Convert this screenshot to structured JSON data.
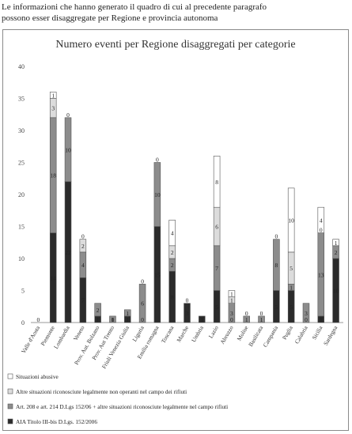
{
  "caption": {
    "line1": "Le informazioni che hanno generato il quadro di cui al precedente paragrafo",
    "line2": "possono esser disaggregate per Regione e provincia autonoma"
  },
  "chart_data": {
    "type": "bar",
    "stacked": true,
    "title": "Numero eventi per Regione disaggregati per categorie",
    "xlabel": "",
    "ylabel": "",
    "ylim": [
      0,
      40
    ],
    "yticks": [
      0,
      5,
      10,
      15,
      20,
      25,
      30,
      35,
      40
    ],
    "grid": false,
    "legend_position": "bottom",
    "categories": [
      "Valle d'Aosta",
      "Piemonte",
      "Lombardia",
      "Veneto",
      "Prov. Aut. Bolzano",
      "Prov. Aut Trento",
      "Friuli Venezia Giulia",
      "Liguria",
      "Emilia romagna",
      "Toscana",
      "Marche",
      "Umbria",
      "Lazio",
      "Abruzzo",
      "Molise",
      "Basilicata",
      "Campania",
      "Puglia",
      "Calabria",
      "Sicilia",
      "Sardegna"
    ],
    "series": [
      {
        "name": "AIA Titolo III-bis D.Lgs. 152/2006",
        "color": "#2b2b2b",
        "values": [
          0,
          14,
          22,
          7,
          1,
          0,
          1,
          0,
          15,
          8,
          3,
          1,
          5,
          0,
          0,
          0,
          5,
          5,
          0,
          1,
          10
        ]
      },
      {
        "name": "Art. 208 e  art. 214 D.Lgs 152/06 + altre situazioni riconosciute legalmente nel campo rifiuti",
        "color": "#8c8c8c",
        "values": [
          0,
          18,
          10,
          4,
          2,
          1,
          1,
          6,
          10,
          2,
          0,
          0,
          7,
          3,
          1,
          1,
          8,
          1,
          3,
          13,
          2
        ]
      },
      {
        "name": "Altre situazioni riconosciute legalmente non operanti nel campo dei rifiuti",
        "color": "#dcdcdc",
        "values": [
          0,
          3,
          0,
          2,
          0,
          0,
          0,
          0,
          0,
          2,
          0,
          0,
          6,
          1,
          0,
          0,
          0,
          5,
          0,
          0,
          0
        ]
      },
      {
        "name": "Situazioni abusive",
        "color": "#ffffff",
        "values": [
          0,
          1,
          0,
          0,
          0,
          0,
          0,
          0,
          0,
          4,
          0,
          0,
          8,
          1,
          0,
          0,
          0,
          10,
          0,
          4,
          1
        ]
      }
    ],
    "data_labels": [
      [
        "0",
        "",
        "",
        ""
      ],
      [
        "14",
        "18",
        "3",
        "1"
      ],
      [
        "22",
        "10",
        "0",
        ""
      ],
      [
        "7",
        "4",
        "2",
        "0"
      ],
      [
        "1",
        "2",
        "",
        ""
      ],
      [
        "0",
        "1",
        "",
        ""
      ],
      [
        "1",
        "1",
        "",
        ""
      ],
      [
        "0",
        "6",
        "",
        "0"
      ],
      [
        "15",
        "10",
        "",
        "0"
      ],
      [
        "8",
        "2",
        "2",
        "4"
      ],
      [
        "3",
        "",
        "",
        "0"
      ],
      [
        "1",
        "",
        "",
        ""
      ],
      [
        "5",
        "7",
        "6",
        "8"
      ],
      [
        "0",
        "3",
        "1",
        "1"
      ],
      [
        "",
        "1",
        "",
        "0"
      ],
      [
        "",
        "1",
        "",
        "0"
      ],
      [
        "5",
        "8",
        "",
        "0"
      ],
      [
        "5",
        "1",
        "5",
        "10"
      ],
      [
        "0",
        "3",
        "",
        ""
      ],
      [
        "1",
        "13",
        "0",
        "4"
      ],
      [
        "10",
        "2",
        "",
        "1"
      ]
    ]
  }
}
